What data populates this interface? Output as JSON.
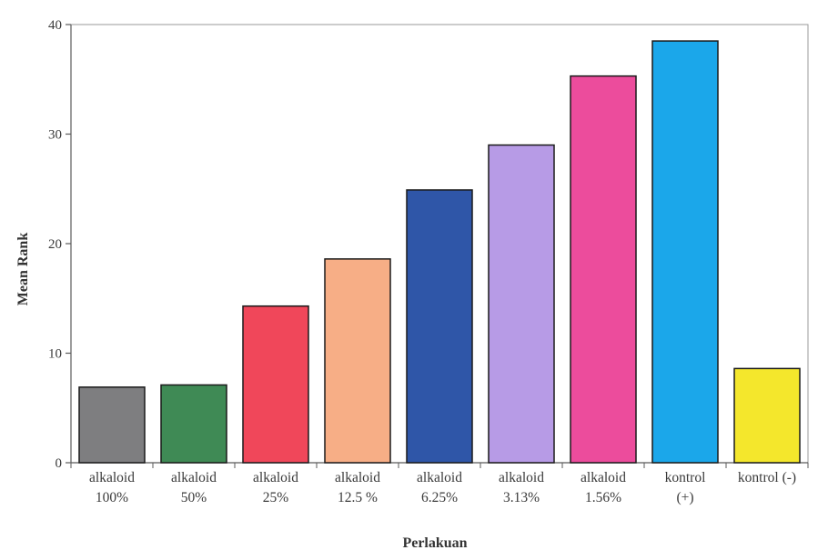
{
  "chart_data": {
    "type": "bar",
    "xlabel": "Perlakuan",
    "ylabel": "Mean Rank",
    "ylim": [
      0,
      40
    ],
    "yticks": [
      "0",
      "10",
      "20",
      "30",
      "40"
    ],
    "grid": false,
    "legend": "none",
    "categories": [
      [
        "alkaloid",
        "100%"
      ],
      [
        "alkaloid",
        "50%"
      ],
      [
        "alkaloid",
        "25%"
      ],
      [
        "alkaloid",
        "12.5 %"
      ],
      [
        "alkaloid",
        "6.25%"
      ],
      [
        "alkaloid",
        "3.13%"
      ],
      [
        "alkaloid",
        "1.56%"
      ],
      [
        "kontrol",
        "(+)"
      ],
      [
        "kontrol (-)"
      ]
    ],
    "values": [
      6.9,
      7.1,
      14.3,
      18.6,
      24.9,
      29.0,
      35.3,
      38.5,
      8.6
    ],
    "colors": [
      "#7e7e80",
      "#3f8a55",
      "#f0475a",
      "#f7ae86",
      "#2f56a8",
      "#b79be6",
      "#ec4c9c",
      "#1ba7ea",
      "#f4e72c"
    ]
  }
}
